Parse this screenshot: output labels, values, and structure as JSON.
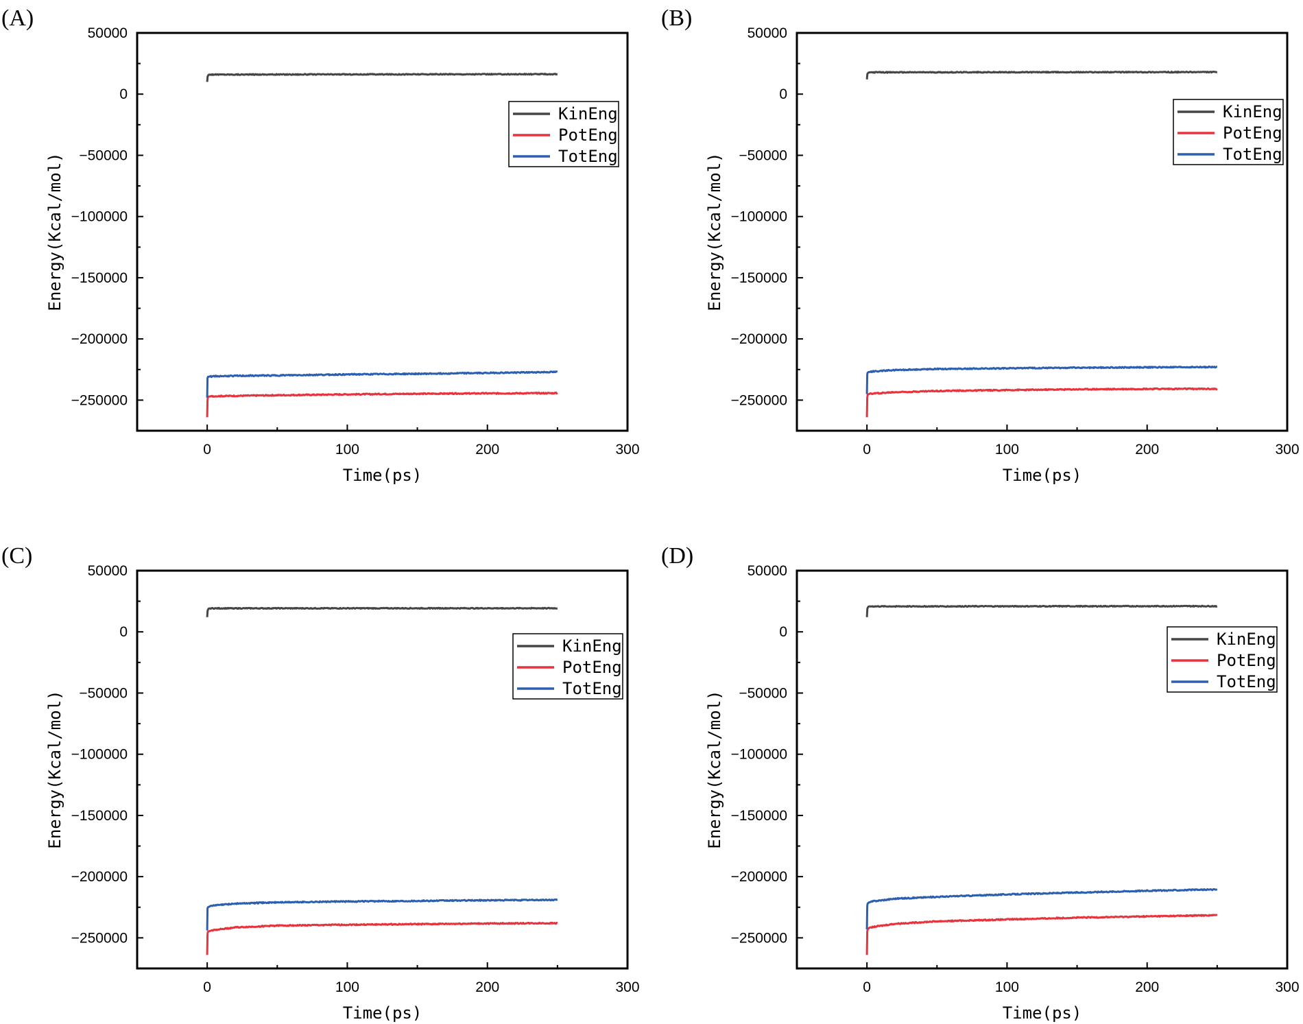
{
  "figure": {
    "xlabel": "Time(ps)",
    "ylabel": "Energy(Kcal/mol)"
  },
  "colors": {
    "KinEng": "#454545",
    "PotEng": "#e8323c",
    "TotEng": "#2c5fb0"
  },
  "chart_data": [
    {
      "panel": "(A)",
      "type": "line",
      "title": "",
      "xlabel": "Time(ps)",
      "ylabel": "Energy(Kcal/mol)",
      "xlim": [
        -50,
        300
      ],
      "ylim": [
        -275000,
        50000
      ],
      "xticks": [
        0,
        100,
        200,
        300
      ],
      "yticks": [
        50000,
        0,
        -50000,
        -100000,
        -150000,
        -200000,
        -250000
      ],
      "legend": "right",
      "series": [
        {
          "name": "KinEng",
          "x": [
            0,
            0.3,
            1,
            2,
            250
          ],
          "y": [
            10000,
            14500,
            15800,
            16000,
            16300
          ]
        },
        {
          "name": "PotEng",
          "x": [
            0,
            0.2,
            0.5,
            1.5,
            5,
            20,
            50,
            100,
            150,
            200,
            250
          ],
          "y": [
            -264000,
            -250000,
            -247500,
            -247000,
            -246800,
            -246500,
            -246000,
            -245300,
            -244800,
            -244500,
            -244300
          ]
        },
        {
          "name": "TotEng",
          "x": [
            0,
            0.2,
            0.5,
            1.5,
            5,
            20,
            50,
            100,
            150,
            200,
            250
          ],
          "y": [
            -248000,
            -232000,
            -231000,
            -230800,
            -230500,
            -230200,
            -229800,
            -229000,
            -228500,
            -227800,
            -227000
          ]
        }
      ]
    },
    {
      "panel": "(B)",
      "type": "line",
      "title": "",
      "xlabel": "Time(ps)",
      "ylabel": "Energy(Kcal/mol)",
      "xlim": [
        -50,
        300
      ],
      "ylim": [
        -275000,
        50000
      ],
      "xticks": [
        0,
        100,
        200,
        300
      ],
      "yticks": [
        50000,
        0,
        -50000,
        -100000,
        -150000,
        -200000,
        -250000
      ],
      "legend": "right",
      "series": [
        {
          "name": "KinEng",
          "x": [
            0,
            0.3,
            1,
            2,
            250
          ],
          "y": [
            12000,
            16500,
            17500,
            17800,
            18000
          ]
        },
        {
          "name": "PotEng",
          "x": [
            0,
            0.2,
            0.5,
            1.5,
            5,
            20,
            50,
            100,
            150,
            200,
            250
          ],
          "y": [
            -264000,
            -248000,
            -245500,
            -245000,
            -244500,
            -243500,
            -242500,
            -241800,
            -241200,
            -240800,
            -240800
          ]
        },
        {
          "name": "TotEng",
          "x": [
            0,
            0.2,
            0.5,
            1.5,
            5,
            20,
            50,
            100,
            150,
            200,
            250
          ],
          "y": [
            -245000,
            -229000,
            -227500,
            -227000,
            -226500,
            -225500,
            -224500,
            -224000,
            -223500,
            -223200,
            -223000
          ]
        }
      ]
    },
    {
      "panel": "(C)",
      "type": "line",
      "title": "",
      "xlabel": "Time(ps)",
      "ylabel": "Energy(Kcal/mol)",
      "xlim": [
        -50,
        300
      ],
      "ylim": [
        -275000,
        50000
      ],
      "xticks": [
        0,
        100,
        200,
        300
      ],
      "yticks": [
        50000,
        0,
        -50000,
        -100000,
        -150000,
        -200000,
        -250000
      ],
      "legend": "right",
      "series": [
        {
          "name": "KinEng",
          "x": [
            0,
            0.3,
            1,
            2,
            250
          ],
          "y": [
            12000,
            17500,
            19000,
            19200,
            19300
          ]
        },
        {
          "name": "PotEng",
          "x": [
            0,
            0.2,
            0.5,
            1.5,
            5,
            20,
            50,
            100,
            150,
            200,
            250
          ],
          "y": [
            -264000,
            -247000,
            -245000,
            -244500,
            -243500,
            -241500,
            -240000,
            -239300,
            -238800,
            -238300,
            -238000
          ]
        },
        {
          "name": "TotEng",
          "x": [
            0,
            0.2,
            0.5,
            1.5,
            5,
            20,
            50,
            100,
            150,
            200,
            250
          ],
          "y": [
            -244000,
            -226000,
            -225000,
            -224500,
            -223500,
            -222000,
            -221000,
            -220300,
            -219800,
            -219300,
            -219000
          ]
        }
      ]
    },
    {
      "panel": "(D)",
      "type": "line",
      "title": "",
      "xlabel": "Time(ps)",
      "ylabel": "Energy(Kcal/mol)",
      "xlim": [
        -50,
        300
      ],
      "ylim": [
        -275000,
        50000
      ],
      "xticks": [
        0,
        100,
        200,
        300
      ],
      "yticks": [
        50000,
        0,
        -50000,
        -100000,
        -150000,
        -200000,
        -250000
      ],
      "legend": "right",
      "series": [
        {
          "name": "KinEng",
          "x": [
            0,
            0.3,
            1,
            2,
            250
          ],
          "y": [
            12000,
            19000,
            20500,
            20800,
            21000
          ]
        },
        {
          "name": "PotEng",
          "x": [
            0,
            0.2,
            0.5,
            1.5,
            5,
            20,
            50,
            100,
            150,
            200,
            250
          ],
          "y": [
            -264000,
            -245000,
            -243000,
            -242000,
            -241000,
            -238500,
            -236500,
            -235000,
            -233500,
            -232500,
            -231500
          ]
        },
        {
          "name": "TotEng",
          "x": [
            0,
            0.2,
            0.5,
            1.5,
            5,
            20,
            50,
            100,
            150,
            200,
            250
          ],
          "y": [
            -243000,
            -224000,
            -222000,
            -221000,
            -220000,
            -218000,
            -216500,
            -214500,
            -213000,
            -211500,
            -210500
          ]
        }
      ]
    }
  ]
}
